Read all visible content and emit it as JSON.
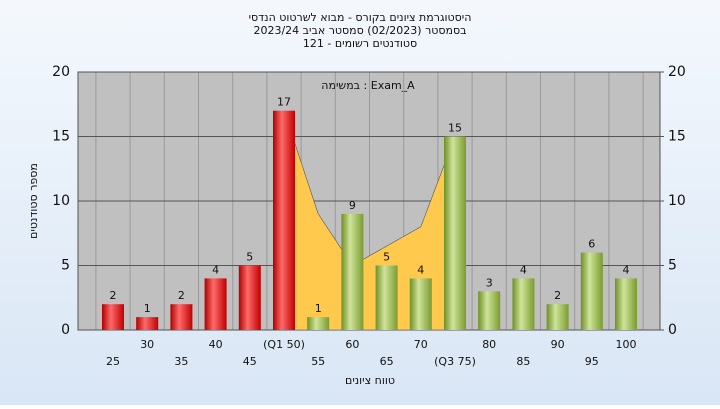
{
  "chart_data": {
    "type": "bar",
    "title": [
      "היסטוגרמת ציונים בקורס - מבוא לשרטוט הנדסי",
      "בסמסטר  (02/2023)  סמסטר אביב  2023/24",
      "121 - סטודנטים רשומים"
    ],
    "annotation": "במשימה : Exam_A",
    "x_label": "טווח ציונים",
    "y_label": "מספר סטודנטים",
    "categories": [
      "25",
      "30",
      "35",
      "40",
      "45",
      "(Q1 50)",
      "55",
      "60",
      "65",
      "70",
      "(Q3 75)",
      "80",
      "85",
      "90",
      "95",
      "100"
    ],
    "values": [
      2,
      1,
      2,
      4,
      5,
      17,
      1,
      9,
      5,
      4,
      15,
      3,
      4,
      2,
      6,
      4
    ],
    "colors": [
      "red",
      "red",
      "red",
      "red",
      "red",
      "red",
      "green",
      "green",
      "green",
      "green",
      "green",
      "green",
      "green",
      "green",
      "green",
      "green"
    ],
    "band_values": [
      null,
      null,
      null,
      null,
      null,
      17,
      9,
      5,
      6.5,
      8,
      15,
      null,
      null,
      null,
      null,
      null
    ],
    "band_color": "#ffc94d",
    "ylim": [
      0,
      20
    ],
    "yticks": [
      0,
      5,
      10,
      15,
      20
    ],
    "y2lim": [
      0,
      20
    ],
    "y2ticks": [
      0,
      5,
      10,
      15,
      20
    ],
    "grid": true
  }
}
